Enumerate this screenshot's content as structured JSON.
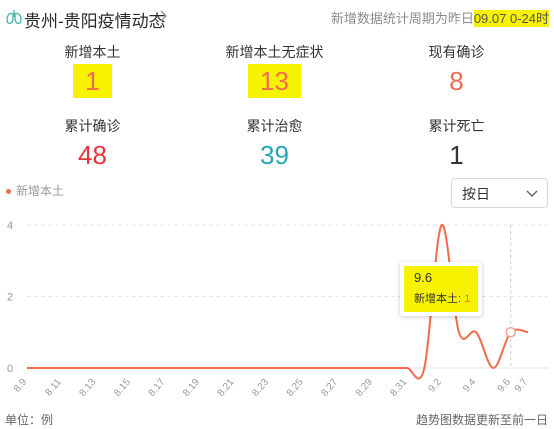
{
  "header": {
    "region": "贵州-贵阳疫情动态",
    "period_prefix": "新增数据统计周期为昨日",
    "period_value": "09.07 0-24时"
  },
  "stats": [
    {
      "label": "新增本土",
      "value": "1",
      "color": "#f26b4c"
    },
    {
      "label": "新增本土无症状",
      "value": "13",
      "color": "#f26b4c"
    },
    {
      "label": "现有确诊",
      "value": "8",
      "color": "#f26b4c"
    },
    {
      "label": "累计确诊",
      "value": "48",
      "color": "#e8353d"
    },
    {
      "label": "累计治愈",
      "value": "39",
      "color": "#22a8b6"
    },
    {
      "label": "累计死亡",
      "value": "1",
      "color": "#333333"
    }
  ],
  "legend": {
    "label": "新增本土",
    "color": "#f26b4c"
  },
  "select": {
    "value": "按日"
  },
  "tooltip": {
    "date": "9.6",
    "series": "新增本土",
    "value": "1"
  },
  "footer": {
    "unit": "单位：例",
    "note": "趋势图数据更新至前一日"
  },
  "chart_data": {
    "type": "line",
    "series": [
      {
        "name": "新增本土",
        "color": "#f26b4c"
      }
    ],
    "x": [
      "8.9",
      "8.10",
      "8.11",
      "8.12",
      "8.13",
      "8.14",
      "8.15",
      "8.16",
      "8.17",
      "8.18",
      "8.19",
      "8.20",
      "8.21",
      "8.22",
      "8.23",
      "8.24",
      "8.25",
      "8.26",
      "8.27",
      "8.28",
      "8.29",
      "8.30",
      "8.31",
      "9.1",
      "9.2",
      "9.3",
      "9.4",
      "9.5",
      "9.6",
      "9.7"
    ],
    "values": [
      0,
      0,
      0,
      0,
      0,
      0,
      0,
      0,
      0,
      0,
      0,
      0,
      0,
      0,
      0,
      0,
      0,
      0,
      0,
      0,
      0,
      0,
      0,
      0,
      4,
      1,
      1,
      0,
      1,
      1
    ],
    "x_tick_labels": [
      "8.9",
      "8.11",
      "8.13",
      "8.15",
      "8.17",
      "8.19",
      "8.21",
      "8.23",
      "8.25",
      "8.27",
      "8.29",
      "8.31",
      "9.2",
      "9.4",
      "9.6",
      "9.7"
    ],
    "y_ticks": [
      "0",
      "2",
      "4"
    ],
    "ylim": [
      0,
      4
    ],
    "highlight_x": "9.6",
    "grid": "horizontal dashed"
  }
}
